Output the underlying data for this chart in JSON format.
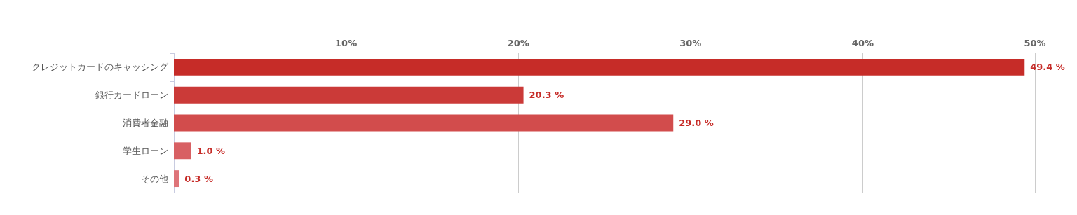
{
  "chart_data": {
    "type": "bar",
    "orientation": "horizontal",
    "categories": [
      "クレジットカードのキャッシング",
      "銀行カードローン",
      "消費者金融",
      "学生ローン",
      "その他"
    ],
    "values": [
      49.4,
      20.3,
      29.0,
      1.0,
      0.3
    ],
    "colors": [
      "#c62c28",
      "#cb3a38",
      "#d24c4c",
      "#d86063",
      "#de7479"
    ],
    "value_labels": [
      "49.4 %",
      "20.3 %",
      "29.0 %",
      "1.0 %",
      "0.3 %"
    ],
    "xlim": [
      0,
      50
    ],
    "xticks": [
      {
        "value": 0,
        "label": null
      },
      {
        "value": 10,
        "label": "10%"
      },
      {
        "value": 20,
        "label": "20%"
      },
      {
        "value": 30,
        "label": "30%"
      },
      {
        "value": 40,
        "label": "40%"
      },
      {
        "value": 50,
        "label": "50%"
      }
    ],
    "grid": "x"
  }
}
